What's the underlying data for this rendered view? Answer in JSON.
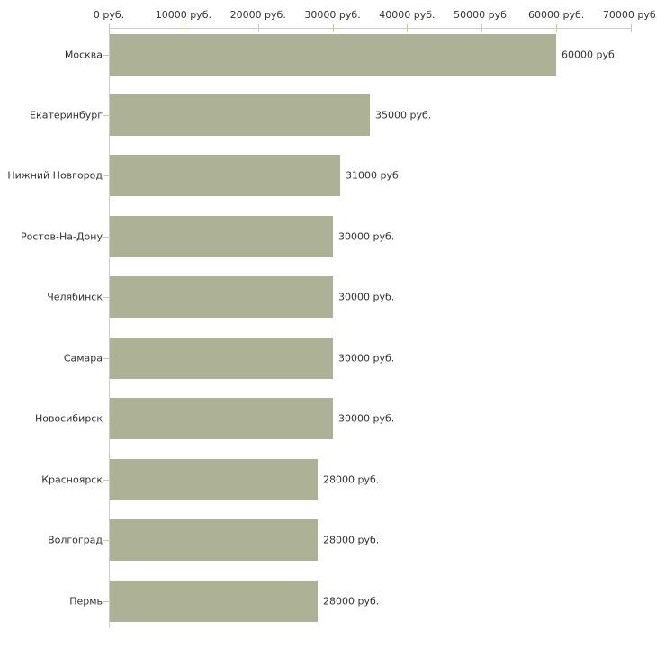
{
  "chart_data": {
    "type": "bar",
    "orientation": "horizontal",
    "title": "",
    "xlabel": "",
    "ylabel": "",
    "xlim": [
      0,
      70000
    ],
    "grid": false,
    "legend_position": null,
    "x_ticks": [
      {
        "value": 0,
        "label": "0 руб."
      },
      {
        "value": 10000,
        "label": "10000 руб."
      },
      {
        "value": 20000,
        "label": "20000 руб."
      },
      {
        "value": 30000,
        "label": "30000 руб."
      },
      {
        "value": 40000,
        "label": "40000 руб."
      },
      {
        "value": 50000,
        "label": "50000 руб."
      },
      {
        "value": 60000,
        "label": "60000 руб."
      },
      {
        "value": 70000,
        "label": "70000 руб."
      }
    ],
    "bars": [
      {
        "category": "Москва",
        "value": 60000,
        "label": "60000 руб."
      },
      {
        "category": "Екатеринбург",
        "value": 35000,
        "label": "35000 руб."
      },
      {
        "category": "Нижний Новгород",
        "value": 31000,
        "label": "31000 руб."
      },
      {
        "category": "Ростов-На-Дону",
        "value": 30000,
        "label": "30000 руб."
      },
      {
        "category": "Челябинск",
        "value": 30000,
        "label": "30000 руб."
      },
      {
        "category": "Самара",
        "value": 30000,
        "label": "30000 руб."
      },
      {
        "category": "Новосибирск",
        "value": 30000,
        "label": "30000 руб."
      },
      {
        "category": "Красноярск",
        "value": 28000,
        "label": "28000 руб."
      },
      {
        "category": "Волгоград",
        "value": 28000,
        "label": "28000 руб."
      },
      {
        "category": "Пермь",
        "value": 28000,
        "label": "28000 руб."
      }
    ],
    "colors": {
      "bar_fill": "#adb296",
      "axis_line": "#cccccc",
      "tick_mark": "#cccc99",
      "text": "#333333",
      "background": "#ffffff"
    }
  }
}
